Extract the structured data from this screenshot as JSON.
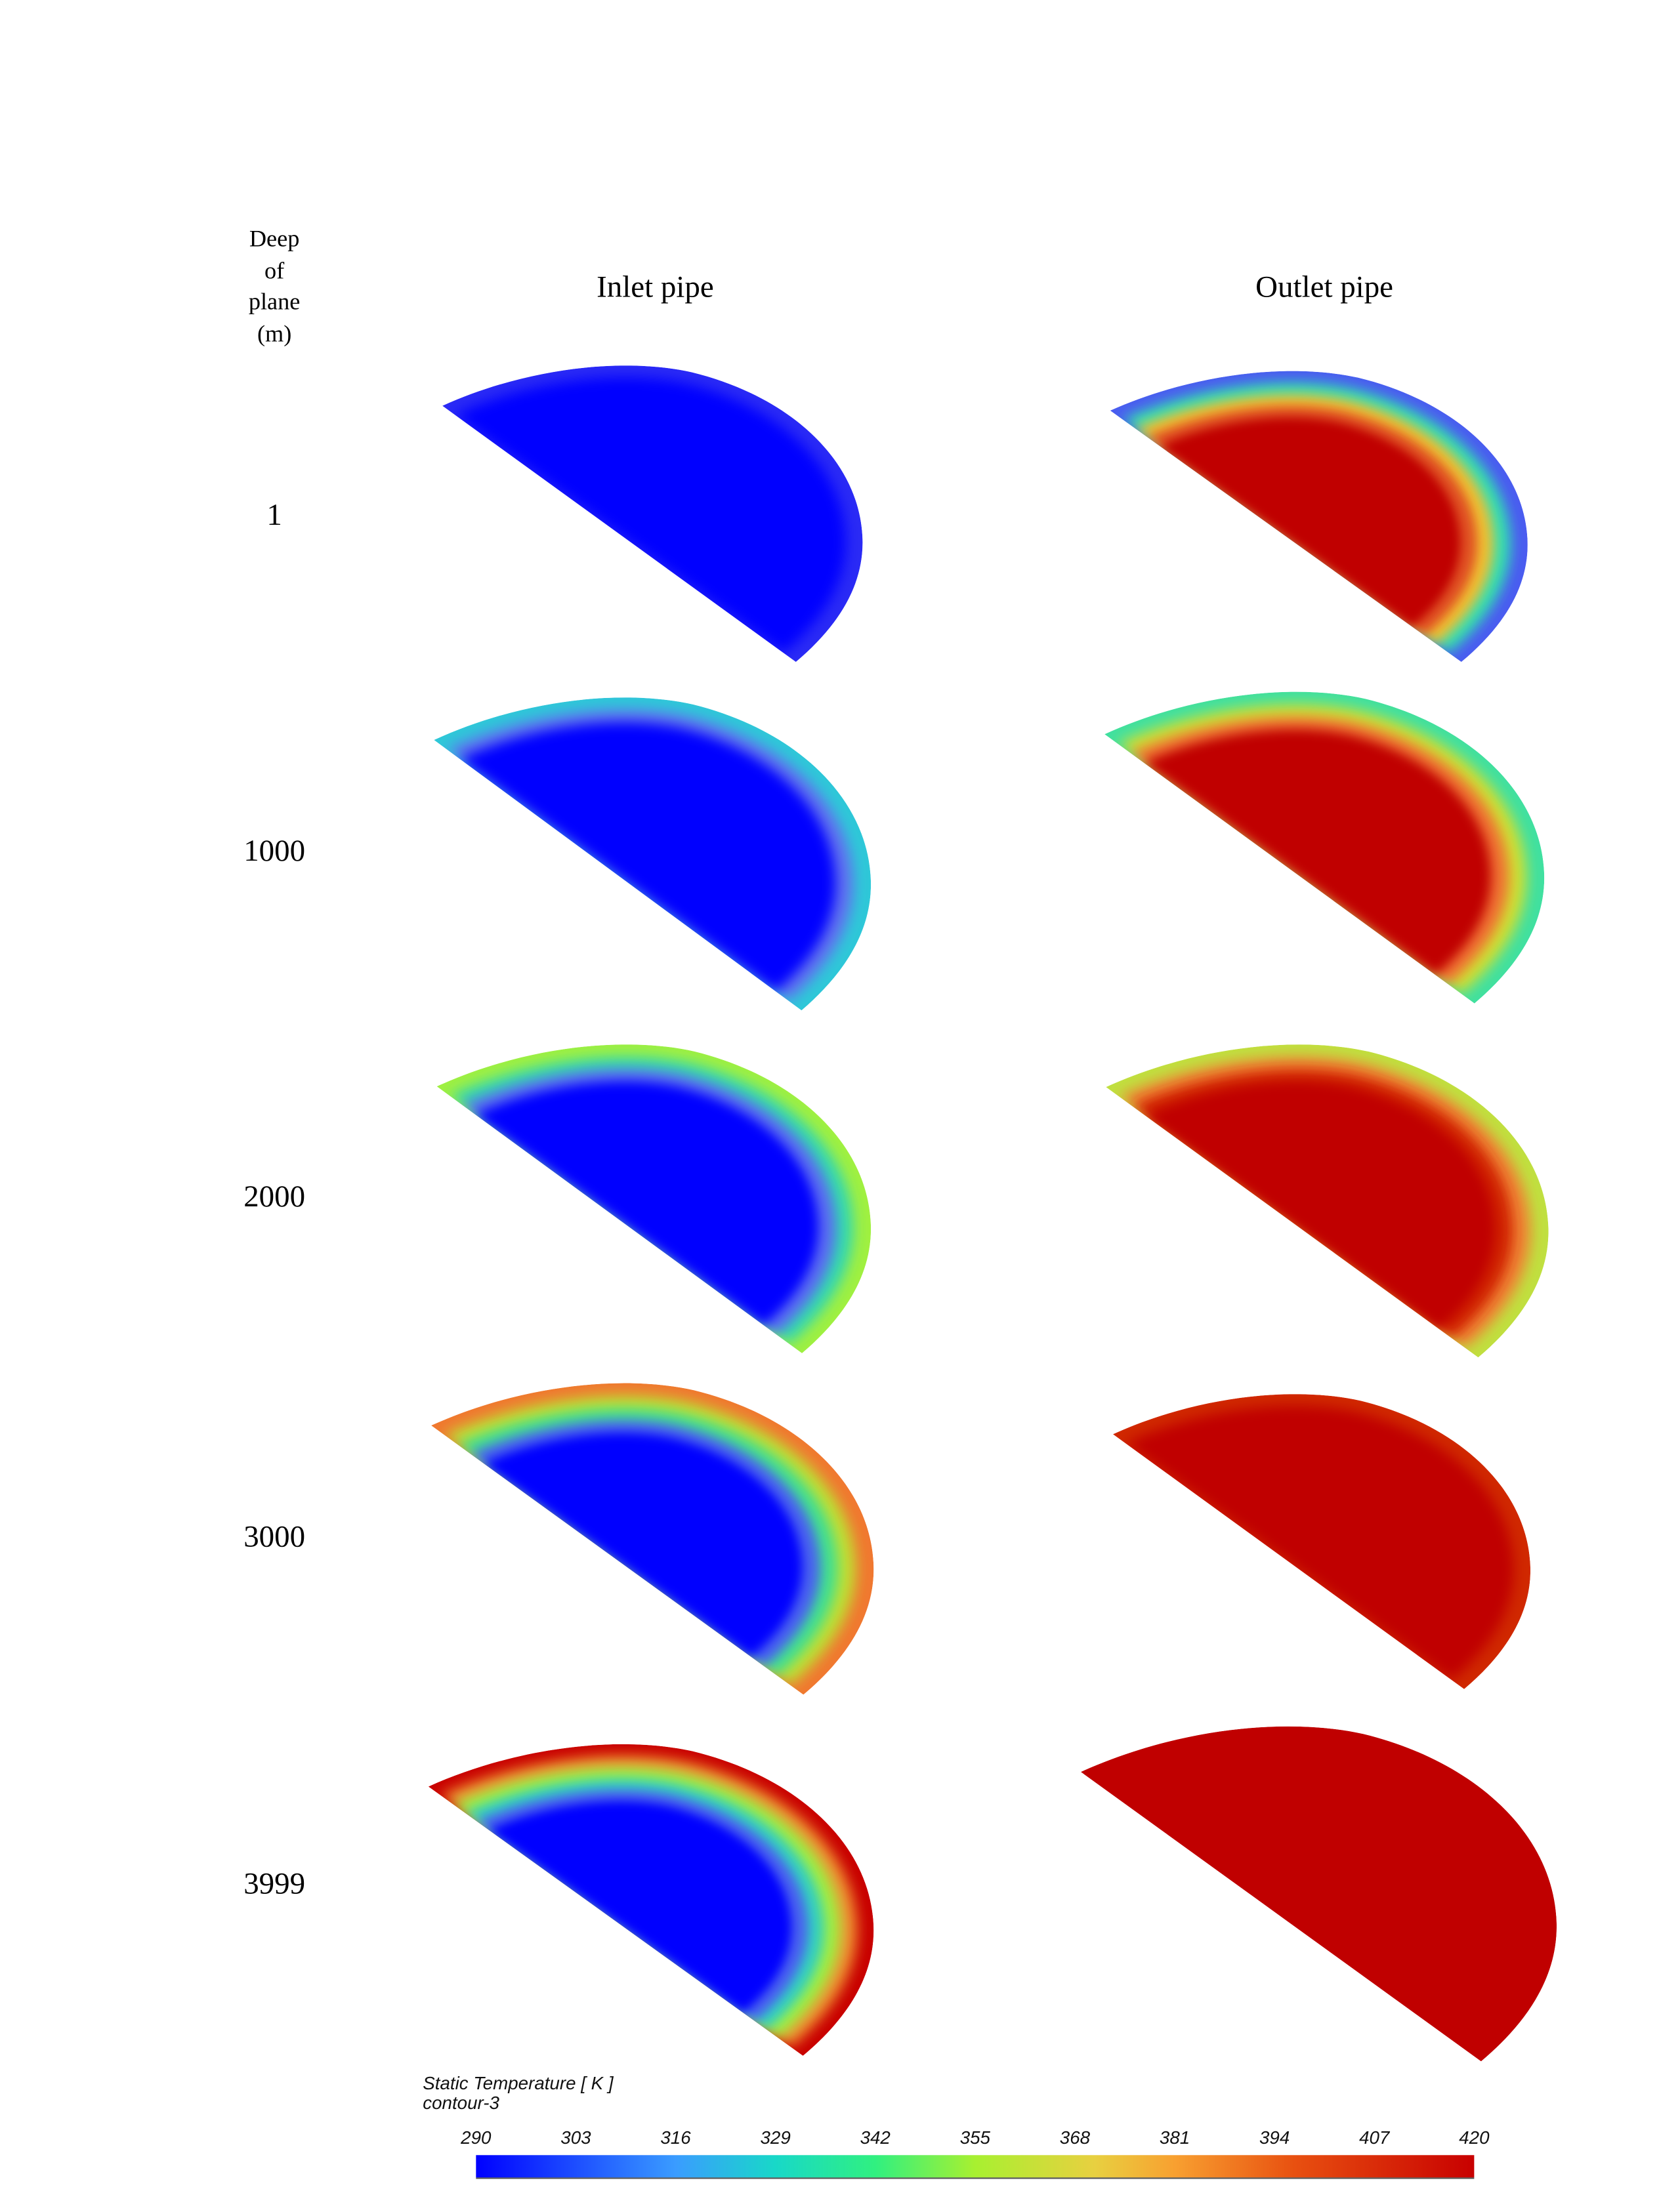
{
  "headers": {
    "depth_label": [
      "Deep",
      "of",
      "plane",
      "(m)"
    ],
    "inlet": "Inlet pipe",
    "outlet": "Outlet pipe"
  },
  "rows": [
    {
      "depth": "1",
      "inlet_bands": [
        "#2a2af5",
        "#0000ff"
      ],
      "outlet_bands": [
        "#4a5cf0",
        "#30e0b0",
        "#f0c030",
        "#e05020",
        "#c00000"
      ]
    },
    {
      "depth": "1000",
      "inlet_bands": [
        "#2ec8d8",
        "#6070f0",
        "#0000ff"
      ],
      "outlet_bands": [
        "#40e0a0",
        "#d0e030",
        "#f07030",
        "#c00000"
      ]
    },
    {
      "depth": "2000",
      "inlet_bands": [
        "#a0f040",
        "#30d8b0",
        "#5a6af2",
        "#0000ff"
      ],
      "outlet_bands": [
        "#c0e040",
        "#f08030",
        "#d02000",
        "#c00000"
      ]
    },
    {
      "depth": "3000",
      "inlet_bands": [
        "#f07830",
        "#c0e030",
        "#40e090",
        "#4a60f0",
        "#0000ff"
      ],
      "outlet_bands": [
        "#d02800",
        "#c00000"
      ]
    },
    {
      "depth": "3999",
      "inlet_bands": [
        "#c80000",
        "#f09030",
        "#a0f040",
        "#30d0c0",
        "#4a60f0",
        "#0000ff"
      ],
      "outlet_bands": [
        "#c00000"
      ]
    }
  ],
  "legend": {
    "title": "Static Temperature [ K ]",
    "subtitle": "contour-3",
    "ticks": [
      "290",
      "303",
      "316",
      "329",
      "342",
      "355",
      "368",
      "381",
      "394",
      "407",
      "420"
    ],
    "min": 290,
    "max": 420
  }
}
